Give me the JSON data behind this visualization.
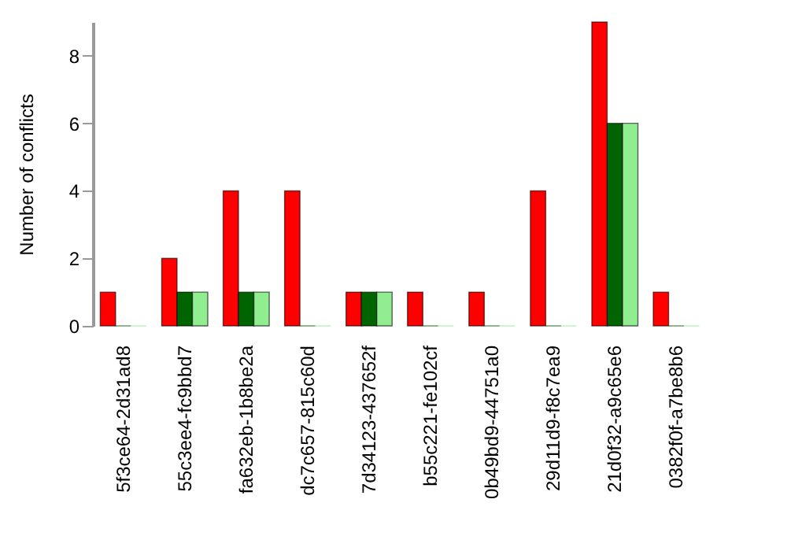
{
  "chart_data": {
    "type": "bar",
    "ylabel": "Number of conflicts",
    "categories": [
      "5f3ce64-2d31ad8",
      "55c3ee4-fc9bbd7",
      "fa632eb-1b8be2a",
      "dc7c657-815c60d",
      "7d34123-437652f",
      "b55c221-fe102cf",
      "0b49bd9-44751a0",
      "29d11d9-f8c7ea9",
      "21d0f32-a9c65e6",
      "0382f0f-a7be8b6"
    ],
    "series": [
      {
        "color": "#ff0000",
        "values": [
          1,
          2,
          4,
          4,
          1,
          1,
          1,
          4,
          9,
          1
        ]
      },
      {
        "color": "#006400",
        "values": [
          0,
          1,
          1,
          0,
          1,
          0,
          0,
          0,
          6,
          0
        ]
      },
      {
        "color": "#90ee90",
        "values": [
          0,
          1,
          1,
          0,
          1,
          0,
          0,
          0,
          6,
          0
        ]
      }
    ],
    "ylim": [
      0,
      9
    ],
    "yticks": [
      0,
      2,
      4,
      6,
      8
    ],
    "grid": false,
    "legend": false
  }
}
